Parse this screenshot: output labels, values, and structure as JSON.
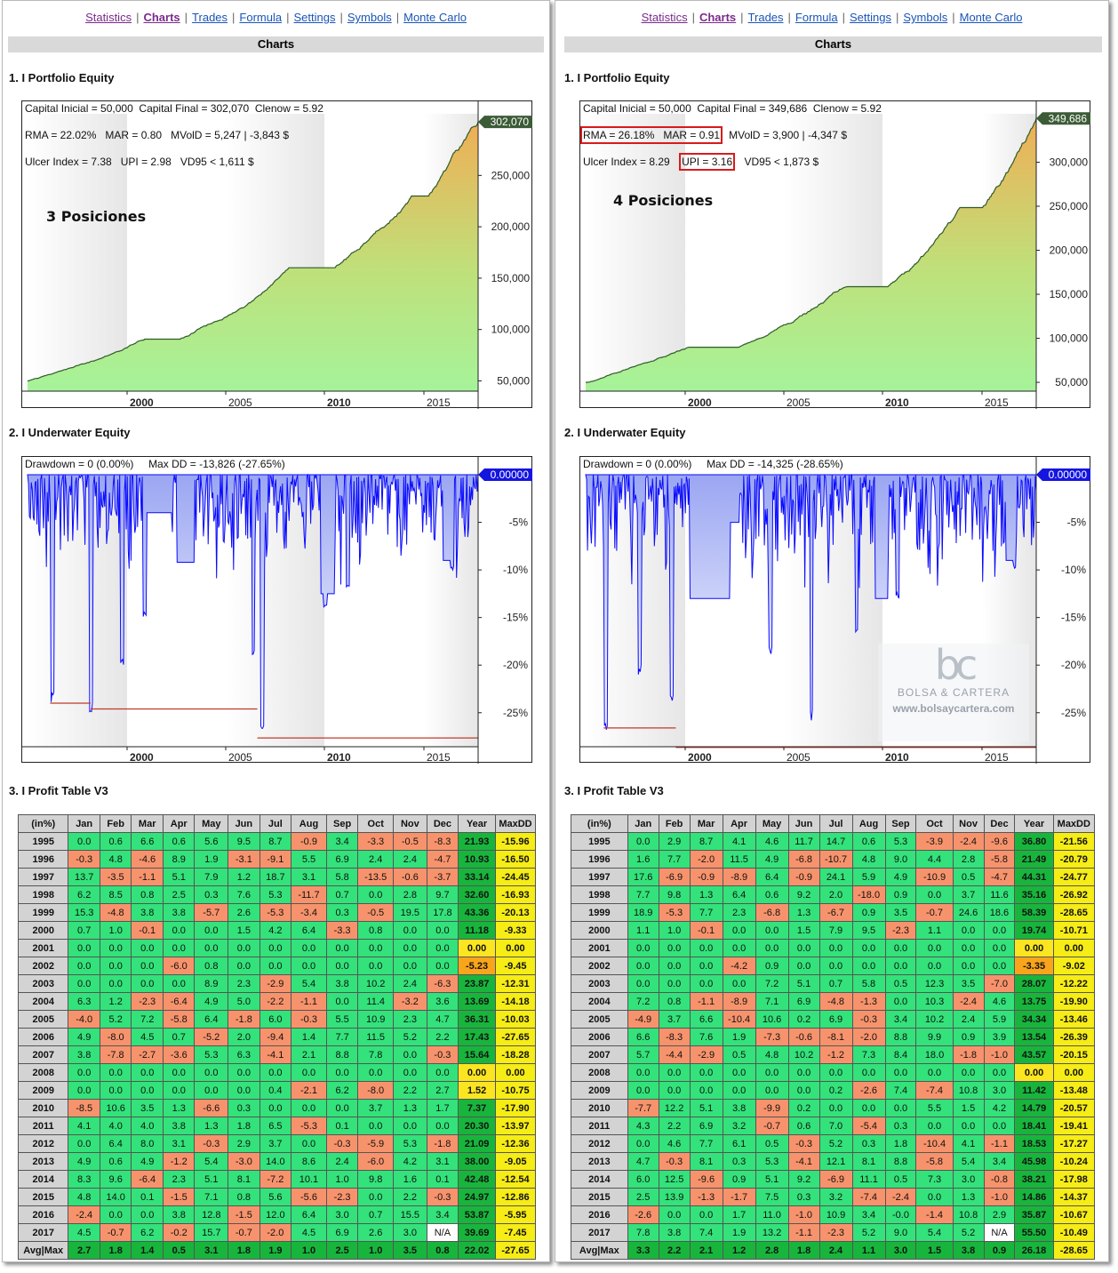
{
  "nav": [
    "Statistics",
    "Charts",
    "Trades",
    "Formula",
    "Settings",
    "Symbols",
    "Monte Carlo"
  ],
  "section_title": "Charts",
  "equity_heading": "1. I Portfolio Equity",
  "underwater_heading": "2. I Underwater Equity",
  "profit_heading": "3. I Profit Table V3",
  "table_headers": [
    "(in%)",
    "Jan",
    "Feb",
    "Mar",
    "Apr",
    "May",
    "Jun",
    "Jul",
    "Aug",
    "Sep",
    "Oct",
    "Nov",
    "Dec",
    "Year",
    "MaxDD"
  ],
  "watermark": {
    "brand": "BOLSA & CARTERA",
    "url": "www.bolsaycartera.com"
  },
  "colors": {
    "equity_fill_bottom": "#a6f39a",
    "equity_fill_top": "#f0ae55",
    "equity_line": "#2f5a2a",
    "underwater_line": "#0a0aff",
    "maxdd_line": "#c0392b",
    "cell_pos": "#33e27a",
    "cell_neg": "#f7936c",
    "year_col": "#18b53d",
    "maxdd_col": "#f6ec16"
  },
  "panels": [
    {
      "label": "3 Posiciones",
      "equity": {
        "stats": [
          "Capital Inicial = 50,000",
          "Capital Final = 302,070",
          "Clenow = 5.92",
          "RMA = 22.02%",
          "MAR = 0.80",
          "MVolD = 5,247 | -3,843 $",
          "Ulcer Index = 7.38",
          "UPI = 2.98",
          "VD95 < 1,611 $"
        ],
        "final_label": "302,070",
        "y_ticks": [
          "250,000",
          "200,000",
          "150,000",
          "100,000",
          "50,000"
        ],
        "x_ticks": [
          "2000",
          "2005",
          "2010",
          "2015"
        ]
      },
      "underwater": {
        "stats": [
          "Drawdown = 0 (0.00%)",
          "Max DD = -13,826 (-27.65%)"
        ],
        "current_label": "0.00000",
        "y_ticks": [
          "-5%",
          "-10%",
          "-15%",
          "-20%",
          "-25%"
        ],
        "x_ticks": [
          "2000",
          "2005",
          "2010",
          "2015"
        ]
      },
      "rows": [
        [
          "1995",
          "0.0",
          "0.6",
          "6.6",
          "0.6",
          "5.6",
          "9.5",
          "8.7",
          "-0.9",
          "3.4",
          "-3.3",
          "-0.5",
          "-8.3",
          "21.93",
          "-15.96"
        ],
        [
          "1996",
          "-0.3",
          "4.8",
          "-4.6",
          "8.9",
          "1.9",
          "-3.1",
          "-9.1",
          "5.5",
          "6.9",
          "2.4",
          "2.4",
          "-4.7",
          "10.93",
          "-16.50"
        ],
        [
          "1997",
          "13.7",
          "-3.5",
          "-1.1",
          "5.1",
          "7.9",
          "1.2",
          "18.7",
          "3.1",
          "5.8",
          "-13.5",
          "-0.6",
          "-3.7",
          "33.14",
          "-24.45"
        ],
        [
          "1998",
          "6.2",
          "8.5",
          "0.8",
          "2.5",
          "0.3",
          "7.6",
          "5.3",
          "-11.7",
          "0.7",
          "0.0",
          "2.8",
          "9.7",
          "32.60",
          "-16.93"
        ],
        [
          "1999",
          "15.3",
          "-4.8",
          "3.8",
          "3.8",
          "-5.7",
          "2.6",
          "-5.3",
          "-3.4",
          "0.3",
          "-0.5",
          "19.5",
          "17.8",
          "43.36",
          "-20.13"
        ],
        [
          "2000",
          "0.7",
          "1.0",
          "-0.1",
          "0.0",
          "0.0",
          "1.5",
          "4.2",
          "6.4",
          "-3.3",
          "0.8",
          "0.0",
          "0.0",
          "11.18",
          "-9.33"
        ],
        [
          "2001",
          "0.0",
          "0.0",
          "0.0",
          "0.0",
          "0.0",
          "0.0",
          "0.0",
          "0.0",
          "0.0",
          "0.0",
          "0.0",
          "0.0",
          "0.00",
          "0.00"
        ],
        [
          "2002",
          "0.0",
          "0.0",
          "0.0",
          "-6.0",
          "0.8",
          "0.0",
          "0.0",
          "0.0",
          "0.0",
          "0.0",
          "0.0",
          "0.0",
          "-5.23",
          "-9.45"
        ],
        [
          "2003",
          "0.0",
          "0.0",
          "0.0",
          "0.0",
          "8.9",
          "2.3",
          "-2.9",
          "5.4",
          "3.8",
          "10.2",
          "2.4",
          "-6.3",
          "23.87",
          "-12.31"
        ],
        [
          "2004",
          "6.3",
          "1.2",
          "-2.3",
          "-6.4",
          "4.9",
          "5.0",
          "-2.2",
          "-1.1",
          "0.0",
          "11.4",
          "-3.2",
          "3.6",
          "13.69",
          "-14.18"
        ],
        [
          "2005",
          "-4.0",
          "5.2",
          "7.2",
          "-5.8",
          "6.4",
          "-1.8",
          "6.0",
          "-0.3",
          "5.5",
          "10.9",
          "2.3",
          "4.7",
          "36.31",
          "-10.03"
        ],
        [
          "2006",
          "4.9",
          "-8.0",
          "4.5",
          "0.7",
          "-5.2",
          "2.0",
          "-9.4",
          "1.4",
          "7.7",
          "11.5",
          "5.2",
          "2.2",
          "17.43",
          "-27.65"
        ],
        [
          "2007",
          "3.8",
          "-7.8",
          "-2.7",
          "-3.6",
          "5.3",
          "6.3",
          "-4.1",
          "2.1",
          "8.8",
          "7.8",
          "0.0",
          "-0.3",
          "15.64",
          "-18.28"
        ],
        [
          "2008",
          "0.0",
          "0.0",
          "0.0",
          "0.0",
          "0.0",
          "0.0",
          "0.0",
          "0.0",
          "0.0",
          "0.0",
          "0.0",
          "0.0",
          "0.00",
          "0.00"
        ],
        [
          "2009",
          "0.0",
          "0.0",
          "0.0",
          "0.0",
          "0.0",
          "0.0",
          "0.4",
          "-2.1",
          "6.2",
          "-8.0",
          "2.2",
          "2.7",
          "1.52",
          "-10.75"
        ],
        [
          "2010",
          "-8.5",
          "10.6",
          "3.5",
          "1.3",
          "-6.6",
          "0.3",
          "0.0",
          "0.0",
          "0.0",
          "3.7",
          "1.3",
          "1.7",
          "7.37",
          "-17.90"
        ],
        [
          "2011",
          "4.1",
          "4.0",
          "4.0",
          "3.8",
          "1.3",
          "1.8",
          "6.5",
          "-5.3",
          "0.1",
          "0.0",
          "0.0",
          "0.0",
          "20.30",
          "-13.97"
        ],
        [
          "2012",
          "0.0",
          "6.4",
          "8.0",
          "3.1",
          "-0.3",
          "2.9",
          "3.7",
          "0.0",
          "-0.3",
          "-5.9",
          "5.3",
          "-1.8",
          "21.09",
          "-12.36"
        ],
        [
          "2013",
          "4.9",
          "0.6",
          "4.9",
          "-1.2",
          "5.4",
          "-3.0",
          "14.0",
          "8.6",
          "2.4",
          "-6.0",
          "4.2",
          "3.1",
          "38.00",
          "-9.05"
        ],
        [
          "2014",
          "8.3",
          "9.6",
          "-6.4",
          "2.3",
          "5.1",
          "8.1",
          "-7.2",
          "10.1",
          "1.0",
          "9.8",
          "1.6",
          "0.1",
          "42.48",
          "-12.54"
        ],
        [
          "2015",
          "4.8",
          "14.0",
          "0.1",
          "-1.5",
          "7.1",
          "0.8",
          "5.6",
          "-5.6",
          "-2.3",
          "0.0",
          "2.2",
          "-0.3",
          "24.97",
          "-12.86"
        ],
        [
          "2016",
          "-2.4",
          "0.0",
          "0.0",
          "3.8",
          "12.8",
          "-1.5",
          "12.0",
          "6.4",
          "3.0",
          "0.7",
          "15.5",
          "3.4",
          "53.87",
          "-5.95"
        ],
        [
          "2017",
          "4.5",
          "-0.7",
          "6.2",
          "-0.2",
          "15.7",
          "-0.7",
          "-2.0",
          "4.5",
          "6.9",
          "2.6",
          "3.0",
          "N/A",
          "39.69",
          "-7.45"
        ]
      ],
      "avg": [
        "Avg|Max",
        "2.7",
        "1.8",
        "1.4",
        "0.5",
        "3.1",
        "1.8",
        "1.9",
        "1.0",
        "2.5",
        "1.0",
        "3.5",
        "0.8",
        "22.02",
        "-27.65"
      ]
    },
    {
      "label": "4 Posiciones",
      "equity": {
        "stats": [
          "Capital Inicial = 50,000",
          "Capital Final = 349,686",
          "Clenow = 5.92",
          "RMA = 26.18%",
          "MAR = 0.91",
          "MVolD = 3,900 | -4,347 $",
          "Ulcer Index = 8.29",
          "UPI = 3.16",
          "VD95 < 1,873 $"
        ],
        "final_label": "349,686",
        "y_ticks": [
          "300,000",
          "250,000",
          "200,000",
          "150,000",
          "100,000",
          "50,000"
        ],
        "x_ticks": [
          "2000",
          "2005",
          "2010",
          "2015"
        ]
      },
      "underwater": {
        "stats": [
          "Drawdown = 0 (0.00%)",
          "Max DD = -14,325 (-28.65%)"
        ],
        "current_label": "0.00000",
        "y_ticks": [
          "-5%",
          "-10%",
          "-15%",
          "-20%",
          "-25%"
        ],
        "x_ticks": [
          "2000",
          "2005",
          "2010",
          "2015"
        ]
      },
      "rows": [
        [
          "1995",
          "0.0",
          "2.9",
          "8.7",
          "4.1",
          "4.6",
          "11.7",
          "14.7",
          "0.6",
          "5.3",
          "-3.9",
          "-2.4",
          "-9.6",
          "36.80",
          "-21.56"
        ],
        [
          "1996",
          "1.6",
          "7.7",
          "-2.0",
          "11.5",
          "4.9",
          "-6.8",
          "-10.7",
          "4.8",
          "9.0",
          "4.4",
          "2.8",
          "-5.8",
          "21.49",
          "-20.79"
        ],
        [
          "1997",
          "17.6",
          "-6.9",
          "-0.9",
          "-8.9",
          "6.4",
          "-0.9",
          "24.1",
          "5.9",
          "4.9",
          "-10.9",
          "0.5",
          "-4.7",
          "44.31",
          "-24.77"
        ],
        [
          "1998",
          "7.7",
          "9.8",
          "1.3",
          "6.4",
          "0.6",
          "9.2",
          "2.0",
          "-18.0",
          "0.9",
          "0.0",
          "3.7",
          "11.6",
          "35.16",
          "-26.92"
        ],
        [
          "1999",
          "18.9",
          "-5.3",
          "7.7",
          "2.3",
          "-6.8",
          "1.3",
          "-6.7",
          "0.9",
          "3.5",
          "-0.7",
          "24.6",
          "18.6",
          "58.39",
          "-28.65"
        ],
        [
          "2000",
          "1.1",
          "1.0",
          "-0.1",
          "0.0",
          "0.0",
          "1.5",
          "7.9",
          "9.5",
          "-2.3",
          "1.1",
          "0.0",
          "0.0",
          "19.74",
          "-10.71"
        ],
        [
          "2001",
          "0.0",
          "0.0",
          "0.0",
          "0.0",
          "0.0",
          "0.0",
          "0.0",
          "0.0",
          "0.0",
          "0.0",
          "0.0",
          "0.0",
          "0.00",
          "0.00"
        ],
        [
          "2002",
          "0.0",
          "0.0",
          "0.0",
          "-4.2",
          "0.9",
          "0.0",
          "0.0",
          "0.0",
          "0.0",
          "0.0",
          "0.0",
          "0.0",
          "-3.35",
          "-9.02"
        ],
        [
          "2003",
          "0.0",
          "0.0",
          "0.0",
          "0.0",
          "7.2",
          "5.1",
          "0.7",
          "5.8",
          "0.5",
          "12.3",
          "3.5",
          "-7.0",
          "28.07",
          "-12.22"
        ],
        [
          "2004",
          "7.2",
          "0.8",
          "-1.1",
          "-8.9",
          "7.1",
          "6.9",
          "-4.8",
          "-1.3",
          "0.0",
          "10.3",
          "-2.4",
          "4.6",
          "13.75",
          "-19.90"
        ],
        [
          "2005",
          "-4.9",
          "3.7",
          "6.6",
          "-10.4",
          "10.6",
          "0.2",
          "6.9",
          "-0.3",
          "3.4",
          "10.2",
          "2.4",
          "5.9",
          "34.34",
          "-13.46"
        ],
        [
          "2006",
          "6.6",
          "-8.3",
          "7.6",
          "1.9",
          "-7.3",
          "-0.6",
          "-8.1",
          "-2.0",
          "8.8",
          "9.9",
          "0.9",
          "3.9",
          "13.54",
          "-26.39"
        ],
        [
          "2007",
          "5.7",
          "-4.4",
          "-2.9",
          "0.5",
          "4.8",
          "10.2",
          "-1.2",
          "7.3",
          "8.4",
          "18.0",
          "-1.8",
          "-1.0",
          "43.57",
          "-20.15"
        ],
        [
          "2008",
          "0.0",
          "0.0",
          "0.0",
          "0.0",
          "0.0",
          "0.0",
          "0.0",
          "0.0",
          "0.0",
          "0.0",
          "0.0",
          "0.0",
          "0.00",
          "0.00"
        ],
        [
          "2009",
          "0.0",
          "0.0",
          "0.0",
          "0.0",
          "0.0",
          "0.0",
          "0.2",
          "-2.6",
          "7.4",
          "-7.4",
          "10.8",
          "3.0",
          "11.42",
          "-13.48"
        ],
        [
          "2010",
          "-7.7",
          "12.2",
          "5.1",
          "3.8",
          "-9.9",
          "0.2",
          "0.0",
          "0.0",
          "0.0",
          "5.5",
          "1.5",
          "4.2",
          "14.79",
          "-20.57"
        ],
        [
          "2011",
          "4.3",
          "2.2",
          "6.9",
          "3.2",
          "-0.7",
          "0.6",
          "7.0",
          "-5.4",
          "0.3",
          "0.0",
          "0.0",
          "0.0",
          "18.41",
          "-19.41"
        ],
        [
          "2012",
          "0.0",
          "4.6",
          "7.7",
          "6.1",
          "0.5",
          "-0.3",
          "5.2",
          "0.3",
          "1.8",
          "-10.4",
          "4.1",
          "-1.1",
          "18.53",
          "-17.27"
        ],
        [
          "2013",
          "4.7",
          "-0.3",
          "8.1",
          "0.3",
          "5.3",
          "-4.1",
          "12.1",
          "8.1",
          "8.8",
          "-5.8",
          "5.4",
          "3.4",
          "45.98",
          "-10.24"
        ],
        [
          "2014",
          "6.0",
          "12.5",
          "-9.6",
          "0.9",
          "5.1",
          "9.2",
          "-6.9",
          "11.1",
          "0.5",
          "7.3",
          "3.0",
          "-0.8",
          "38.21",
          "-17.98"
        ],
        [
          "2015",
          "2.5",
          "13.9",
          "-1.3",
          "-1.7",
          "7.5",
          "0.3",
          "3.2",
          "-7.4",
          "-2.4",
          "0.0",
          "1.3",
          "-1.0",
          "14.86",
          "-14.37"
        ],
        [
          "2016",
          "-2.6",
          "0.0",
          "0.0",
          "1.7",
          "11.0",
          "-1.0",
          "10.9",
          "3.4",
          "-0.0",
          "-1.4",
          "10.8",
          "2.9",
          "35.87",
          "-10.67"
        ],
        [
          "2017",
          "7.8",
          "3.8",
          "7.4",
          "1.9",
          "13.2",
          "-1.1",
          "-2.3",
          "5.2",
          "9.0",
          "5.4",
          "5.2",
          "N/A",
          "55.50",
          "-10.49"
        ]
      ],
      "avg": [
        "Avg|Max",
        "3.3",
        "2.2",
        "2.1",
        "1.2",
        "2.8",
        "1.8",
        "2.4",
        "1.1",
        "3.0",
        "1.5",
        "3.8",
        "0.9",
        "26.18",
        "-28.65"
      ]
    }
  ]
}
